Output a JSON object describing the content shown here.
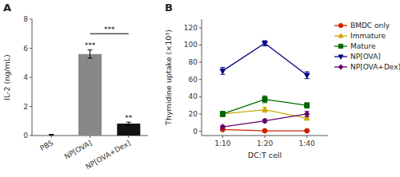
{
  "chart_data": [
    {
      "type": "bar",
      "title": "A",
      "categories": [
        "PBS",
        "NP[OVA]",
        "NP[OVA+Dex]"
      ],
      "values": [
        0.05,
        5.6,
        0.82
      ],
      "errors": [
        0.03,
        0.28,
        0.1
      ],
      "colors": [
        "#aaaaaa",
        "#888888",
        "#111111"
      ],
      "ylabel": "IL-2 (ng/mL)",
      "ylim": [
        0,
        8
      ],
      "yticks": [
        0,
        2,
        4,
        6,
        8
      ],
      "grid": false,
      "annotations": [
        {
          "text": "***",
          "x": "NP[OVA]",
          "y": 5.95
        },
        {
          "text": "**",
          "x": "NP[OVA+Dex]",
          "y": 0.97
        },
        {
          "text": "***",
          "x_from": "NP[OVA]",
          "x_to": "NP[OVA+Dex]",
          "y": 7.0
        }
      ]
    },
    {
      "type": "line",
      "title": "B",
      "categories": [
        "1:10",
        "1:20",
        "1:40"
      ],
      "xlabel": "DC:T cell",
      "ylabel": "Thymidine uptake (×10³)",
      "ylim": [
        -5,
        130
      ],
      "yticks": [
        0,
        20,
        40,
        60,
        80,
        100,
        120
      ],
      "grid": false,
      "legend": "upper right",
      "series": [
        {
          "name": "BMDC only",
          "color": "#cc2200",
          "marker": "circle",
          "values": [
            2,
            0.5,
            0.5
          ],
          "errors": [
            0.5,
            0.3,
            0.3
          ]
        },
        {
          "name": "Immature",
          "color": "#ccaa00",
          "marker": "triangle-up",
          "values": [
            20,
            25,
            15
          ],
          "errors": [
            3,
            3,
            2
          ]
        },
        {
          "name": "Mature",
          "color": "#006600",
          "marker": "square",
          "values": [
            20,
            37,
            30
          ],
          "errors": [
            3,
            4,
            3
          ]
        },
        {
          "name": "NP[OVA]",
          "color": "#000080",
          "marker": "triangle-down",
          "values": [
            70,
            102,
            65
          ],
          "errors": [
            4,
            3,
            4
          ]
        },
        {
          "name": "NP[OVA+Dex]",
          "color": "#660066",
          "marker": "diamond",
          "values": [
            5,
            12,
            20
          ],
          "errors": [
            1.5,
            2,
            3
          ]
        }
      ]
    }
  ]
}
